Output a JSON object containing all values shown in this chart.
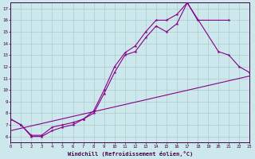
{
  "xlabel": "Windchill (Refroidissement éolien,°C)",
  "background_color": "#cce8ec",
  "line_color": "#880088",
  "grid_color": "#aacccc",
  "xlim": [
    0,
    23
  ],
  "ylim": [
    5.5,
    17.5
  ],
  "line1_x": [
    0,
    1,
    2,
    3,
    4,
    5,
    6,
    7,
    8,
    9,
    10,
    11,
    12,
    13,
    14,
    15,
    16,
    17,
    18,
    21
  ],
  "line1_y": [
    7.5,
    7.0,
    6.0,
    6.0,
    6.5,
    6.8,
    7.0,
    7.5,
    8.0,
    9.7,
    11.5,
    13.0,
    13.3,
    14.5,
    15.5,
    15.0,
    15.7,
    17.5,
    16.0,
    16.0
  ],
  "line2_x": [
    0,
    1,
    2,
    3,
    4,
    5,
    6,
    7,
    8,
    9,
    10,
    11,
    12,
    13,
    14,
    15,
    16,
    17,
    20,
    21,
    22,
    23
  ],
  "line2_y": [
    7.5,
    7.0,
    6.1,
    6.1,
    6.8,
    7.0,
    7.2,
    7.5,
    8.2,
    10.0,
    12.0,
    13.2,
    13.8,
    15.0,
    16.0,
    16.0,
    16.5,
    17.5,
    13.3,
    13.0,
    12.0,
    11.5
  ],
  "line3_x": [
    0,
    23
  ],
  "line3_y": [
    6.5,
    11.2
  ],
  "spine_color": "#440044",
  "label_color": "#440044"
}
